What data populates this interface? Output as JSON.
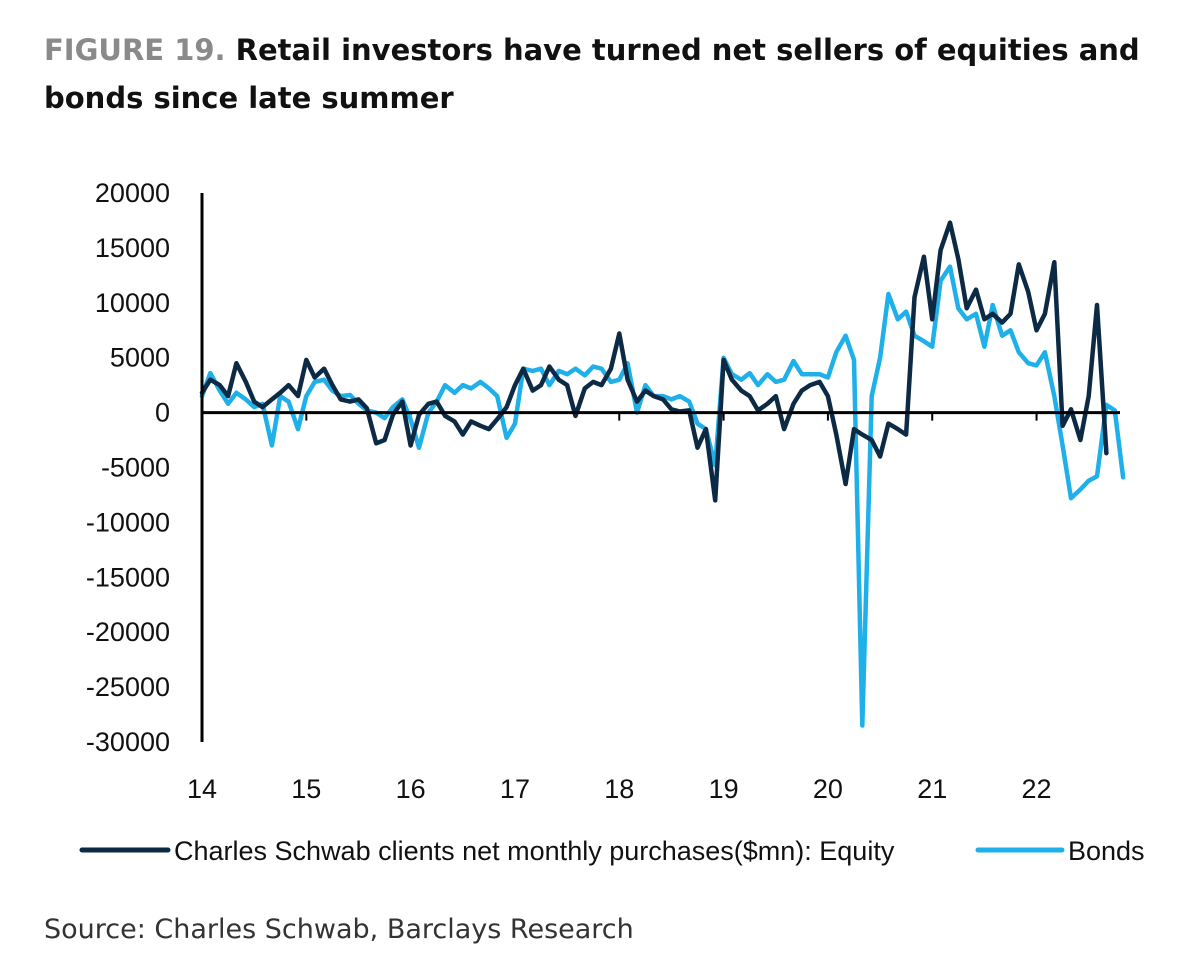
{
  "title": {
    "label": "FIGURE 19.",
    "text": "Retail investors have turned net sellers of equities and bonds since late summer"
  },
  "source": "Source: Charles Schwab, Barclays Research",
  "colors": {
    "equity": "#0d2a45",
    "bonds": "#1fb0ea",
    "axis": "#000000",
    "text": "#111111"
  },
  "chart_data": {
    "type": "line",
    "xlim": [
      2014,
      2022.8
    ],
    "ylim": [
      -30000,
      20000
    ],
    "yticks": [
      20000,
      15000,
      10000,
      5000,
      0,
      -5000,
      -10000,
      -15000,
      -20000,
      -25000,
      -30000
    ],
    "xticks": [
      {
        "x": 2014,
        "label": "14"
      },
      {
        "x": 2015,
        "label": "15"
      },
      {
        "x": 2016,
        "label": "16"
      },
      {
        "x": 2017,
        "label": "17"
      },
      {
        "x": 2018,
        "label": "18"
      },
      {
        "x": 2019,
        "label": "19"
      },
      {
        "x": 2020,
        "label": "20"
      },
      {
        "x": 2021,
        "label": "21"
      },
      {
        "x": 2022,
        "label": "22"
      }
    ],
    "grid": false,
    "legend": "bottom",
    "series": [
      {
        "name": "Charles Schwab clients net monthly purchases($mn): Equity",
        "color": "#0d2a45",
        "points": [
          [
            2014.0,
            1800
          ],
          [
            2014.08,
            3000
          ],
          [
            2014.17,
            2500
          ],
          [
            2014.25,
            1500
          ],
          [
            2014.33,
            4500
          ],
          [
            2014.42,
            2800
          ],
          [
            2014.5,
            1000
          ],
          [
            2014.58,
            500
          ],
          [
            2014.67,
            1200
          ],
          [
            2014.75,
            1800
          ],
          [
            2014.83,
            2500
          ],
          [
            2014.92,
            1500
          ],
          [
            2015.0,
            4800
          ],
          [
            2015.08,
            3200
          ],
          [
            2015.17,
            4000
          ],
          [
            2015.25,
            2500
          ],
          [
            2015.33,
            1200
          ],
          [
            2015.42,
            1000
          ],
          [
            2015.5,
            1200
          ],
          [
            2015.58,
            400
          ],
          [
            2015.67,
            -2800
          ],
          [
            2015.75,
            -2500
          ],
          [
            2015.83,
            -200
          ],
          [
            2015.92,
            1000
          ],
          [
            2016.0,
            -3000
          ],
          [
            2016.08,
            -200
          ],
          [
            2016.17,
            800
          ],
          [
            2016.25,
            1000
          ],
          [
            2016.33,
            -300
          ],
          [
            2016.42,
            -800
          ],
          [
            2016.5,
            -2000
          ],
          [
            2016.58,
            -800
          ],
          [
            2016.67,
            -1200
          ],
          [
            2016.75,
            -1500
          ],
          [
            2016.83,
            -600
          ],
          [
            2016.92,
            500
          ],
          [
            2017.0,
            2500
          ],
          [
            2017.08,
            4000
          ],
          [
            2017.17,
            2000
          ],
          [
            2017.25,
            2500
          ],
          [
            2017.33,
            4200
          ],
          [
            2017.42,
            3000
          ],
          [
            2017.5,
            2500
          ],
          [
            2017.58,
            -300
          ],
          [
            2017.67,
            2200
          ],
          [
            2017.75,
            2800
          ],
          [
            2017.83,
            2500
          ],
          [
            2017.92,
            4000
          ],
          [
            2018.0,
            7200
          ],
          [
            2018.08,
            3000
          ],
          [
            2018.17,
            1000
          ],
          [
            2018.25,
            2000
          ],
          [
            2018.33,
            1500
          ],
          [
            2018.42,
            1200
          ],
          [
            2018.5,
            300
          ],
          [
            2018.58,
            100
          ],
          [
            2018.67,
            200
          ],
          [
            2018.75,
            -3200
          ],
          [
            2018.83,
            -1500
          ],
          [
            2018.92,
            -8000
          ],
          [
            2019.0,
            4800
          ],
          [
            2019.08,
            3000
          ],
          [
            2019.17,
            2000
          ],
          [
            2019.25,
            1500
          ],
          [
            2019.33,
            200
          ],
          [
            2019.42,
            800
          ],
          [
            2019.5,
            1500
          ],
          [
            2019.58,
            -1500
          ],
          [
            2019.67,
            800
          ],
          [
            2019.75,
            2000
          ],
          [
            2019.83,
            2500
          ],
          [
            2019.92,
            2800
          ],
          [
            2020.0,
            1500
          ],
          [
            2020.08,
            -2000
          ],
          [
            2020.17,
            -6500
          ],
          [
            2020.25,
            -1500
          ],
          [
            2020.33,
            -2000
          ],
          [
            2020.42,
            -2500
          ],
          [
            2020.5,
            -4000
          ],
          [
            2020.58,
            -1000
          ],
          [
            2020.67,
            -1500
          ],
          [
            2020.75,
            -2000
          ],
          [
            2020.83,
            10500
          ],
          [
            2020.92,
            14200
          ],
          [
            2021.0,
            8500
          ],
          [
            2021.08,
            14800
          ],
          [
            2021.17,
            17300
          ],
          [
            2021.25,
            14000
          ],
          [
            2021.33,
            9500
          ],
          [
            2021.42,
            11200
          ],
          [
            2021.5,
            8500
          ],
          [
            2021.58,
            9000
          ],
          [
            2021.67,
            8200
          ],
          [
            2021.75,
            9000
          ],
          [
            2021.83,
            13500
          ],
          [
            2021.92,
            11000
          ],
          [
            2022.0,
            7500
          ],
          [
            2022.08,
            9000
          ],
          [
            2022.17,
            13700
          ],
          [
            2022.25,
            -1200
          ],
          [
            2022.33,
            300
          ],
          [
            2022.42,
            -2500
          ],
          [
            2022.5,
            1500
          ],
          [
            2022.58,
            9800
          ],
          [
            2022.67,
            -3700
          ]
        ]
      },
      {
        "name": "Bonds",
        "color": "#1fb0ea",
        "points": [
          [
            2014.0,
            1500
          ],
          [
            2014.08,
            3600
          ],
          [
            2014.17,
            2000
          ],
          [
            2014.25,
            800
          ],
          [
            2014.33,
            1800
          ],
          [
            2014.42,
            1200
          ],
          [
            2014.5,
            500
          ],
          [
            2014.58,
            800
          ],
          [
            2014.67,
            -3000
          ],
          [
            2014.75,
            1500
          ],
          [
            2014.83,
            1000
          ],
          [
            2014.92,
            -1500
          ],
          [
            2015.0,
            1500
          ],
          [
            2015.08,
            2800
          ],
          [
            2015.17,
            3000
          ],
          [
            2015.25,
            2000
          ],
          [
            2015.33,
            1500
          ],
          [
            2015.42,
            1600
          ],
          [
            2015.5,
            800
          ],
          [
            2015.58,
            200
          ],
          [
            2015.67,
            0
          ],
          [
            2015.75,
            -500
          ],
          [
            2015.83,
            500
          ],
          [
            2015.92,
            1200
          ],
          [
            2016.0,
            -600
          ],
          [
            2016.08,
            -3200
          ],
          [
            2016.17,
            0
          ],
          [
            2016.25,
            1000
          ],
          [
            2016.33,
            2500
          ],
          [
            2016.42,
            1800
          ],
          [
            2016.5,
            2500
          ],
          [
            2016.58,
            2200
          ],
          [
            2016.67,
            2800
          ],
          [
            2016.75,
            2200
          ],
          [
            2016.83,
            1500
          ],
          [
            2016.92,
            -2300
          ],
          [
            2017.0,
            -1000
          ],
          [
            2017.08,
            4000
          ],
          [
            2017.17,
            3800
          ],
          [
            2017.25,
            4000
          ],
          [
            2017.33,
            2500
          ],
          [
            2017.42,
            3800
          ],
          [
            2017.5,
            3500
          ],
          [
            2017.58,
            4000
          ],
          [
            2017.67,
            3400
          ],
          [
            2017.75,
            4200
          ],
          [
            2017.83,
            4000
          ],
          [
            2017.92,
            2800
          ],
          [
            2018.0,
            3000
          ],
          [
            2018.08,
            4500
          ],
          [
            2018.17,
            0
          ],
          [
            2018.25,
            2500
          ],
          [
            2018.33,
            1500
          ],
          [
            2018.42,
            1500
          ],
          [
            2018.5,
            1200
          ],
          [
            2018.58,
            1500
          ],
          [
            2018.67,
            1000
          ],
          [
            2018.75,
            -1000
          ],
          [
            2018.83,
            -1500
          ],
          [
            2018.92,
            -4800
          ],
          [
            2019.0,
            5000
          ],
          [
            2019.08,
            3500
          ],
          [
            2019.17,
            3000
          ],
          [
            2019.25,
            3600
          ],
          [
            2019.33,
            2500
          ],
          [
            2019.42,
            3500
          ],
          [
            2019.5,
            2800
          ],
          [
            2019.58,
            3000
          ],
          [
            2019.67,
            4700
          ],
          [
            2019.75,
            3500
          ],
          [
            2019.83,
            3500
          ],
          [
            2019.92,
            3500
          ],
          [
            2020.0,
            3200
          ],
          [
            2020.08,
            5500
          ],
          [
            2020.17,
            7000
          ],
          [
            2020.25,
            4800
          ],
          [
            2020.33,
            -28500
          ],
          [
            2020.42,
            1500
          ],
          [
            2020.5,
            5000
          ],
          [
            2020.58,
            10800
          ],
          [
            2020.67,
            8500
          ],
          [
            2020.75,
            9200
          ],
          [
            2020.83,
            7000
          ],
          [
            2020.92,
            6500
          ],
          [
            2021.0,
            6000
          ],
          [
            2021.08,
            12000
          ],
          [
            2021.17,
            13300
          ],
          [
            2021.25,
            9500
          ],
          [
            2021.33,
            8500
          ],
          [
            2021.42,
            9000
          ],
          [
            2021.5,
            6000
          ],
          [
            2021.58,
            9800
          ],
          [
            2021.67,
            7000
          ],
          [
            2021.75,
            7500
          ],
          [
            2021.83,
            5500
          ],
          [
            2021.92,
            4500
          ],
          [
            2022.0,
            4300
          ],
          [
            2022.08,
            5500
          ],
          [
            2022.17,
            1500
          ],
          [
            2022.25,
            -3000
          ],
          [
            2022.33,
            -7800
          ],
          [
            2022.42,
            -7000
          ],
          [
            2022.5,
            -6200
          ],
          [
            2022.58,
            -5800
          ],
          [
            2022.67,
            700
          ],
          [
            2022.75,
            200
          ],
          [
            2022.83,
            -5900
          ]
        ]
      }
    ]
  }
}
